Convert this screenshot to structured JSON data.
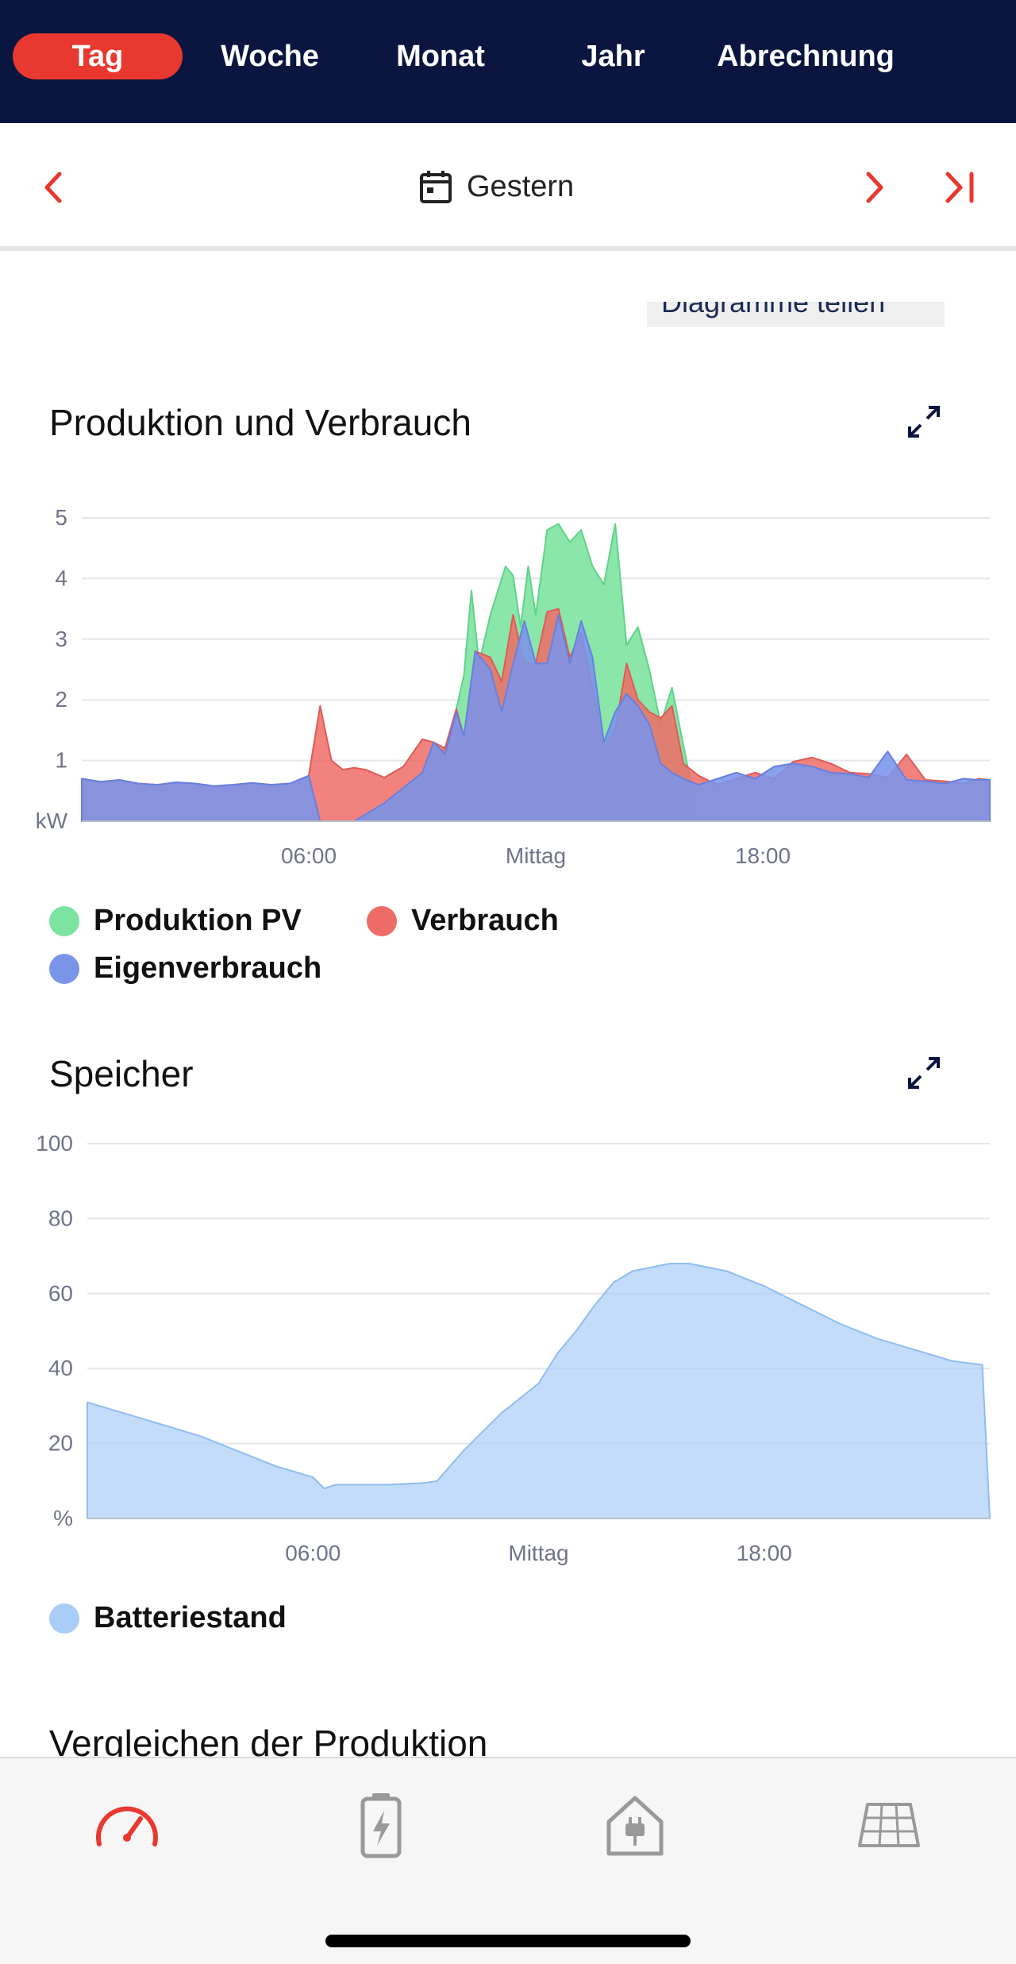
{
  "tabs": [
    {
      "label": "Tag",
      "active": true
    },
    {
      "label": "Woche",
      "active": false
    },
    {
      "label": "Monat",
      "active": false
    },
    {
      "label": "Jahr",
      "active": false
    },
    {
      "label": "Abrechnung",
      "active": false
    }
  ],
  "date_nav": {
    "label": "Gestern"
  },
  "share_button": {
    "label": "Diagramme teilen"
  },
  "sections": {
    "production": {
      "title": "Produktion und Verbrauch"
    },
    "storage": {
      "title": "Speicher"
    },
    "compare": {
      "title": "Vergleichen der Produktion"
    }
  },
  "colors": {
    "accent": "#e8382f",
    "nav_bg": "#0a1640",
    "pv": "#7de3a0",
    "consumption": "#ee6c67",
    "self": "#7a94ea",
    "battery": "#a9cdf7"
  },
  "chart_data": [
    {
      "type": "area",
      "ylabel": "kW",
      "ylim": [
        0,
        5
      ],
      "yticks": [
        1,
        2,
        3,
        4,
        5
      ],
      "x_range_hours": [
        0,
        24
      ],
      "x_tick_labels": [
        {
          "hour": 6,
          "label": "06:00"
        },
        {
          "hour": 12,
          "label": "Mittag"
        },
        {
          "hour": 18,
          "label": "18:00"
        }
      ],
      "grid": true,
      "legend_position": "bottom",
      "series": [
        {
          "name": "Produktion PV",
          "x": [
            0,
            6.4,
            7.2,
            8.1,
            9,
            9.7,
            10.1,
            10.3,
            10.5,
            10.8,
            11.2,
            11.4,
            11.6,
            11.8,
            12,
            12.3,
            12.6,
            12.9,
            13.2,
            13.5,
            13.8,
            14.1,
            14.4,
            14.7,
            15,
            15.3,
            15.6,
            16.3,
            24
          ],
          "values": [
            0,
            0,
            0,
            0.2,
            0.8,
            1.3,
            2.4,
            3.8,
            2.6,
            3.4,
            4.2,
            4.05,
            3.2,
            4.2,
            3.4,
            4.8,
            4.9,
            4.6,
            4.8,
            4.2,
            3.9,
            4.9,
            2.9,
            3.2,
            2.5,
            1.6,
            2.2,
            0,
            0
          ]
        },
        {
          "name": "Verbrauch",
          "x": [
            0,
            0.5,
            1,
            1.5,
            2,
            2.5,
            3,
            3.5,
            4,
            4.5,
            5,
            5.5,
            6,
            6.3,
            6.6,
            6.9,
            7.2,
            7.5,
            8,
            8.5,
            9,
            9.3,
            9.6,
            9.9,
            10.1,
            10.4,
            10.8,
            11.1,
            11.4,
            11.7,
            12,
            12.3,
            12.6,
            12.9,
            13.2,
            13.5,
            13.8,
            14.1,
            14.4,
            14.7,
            15,
            15.3,
            15.6,
            15.9,
            16.3,
            16.8,
            17.3,
            17.8,
            18.3,
            18.8,
            19.3,
            19.8,
            20.3,
            20.8,
            21.3,
            21.8,
            22.3,
            22.8,
            23.3,
            23.7,
            24
          ],
          "values": [
            0.7,
            0.65,
            0.68,
            0.62,
            0.6,
            0.64,
            0.62,
            0.58,
            0.6,
            0.63,
            0.6,
            0.62,
            0.75,
            1.9,
            1,
            0.85,
            0.88,
            0.85,
            0.72,
            0.9,
            1.35,
            1.3,
            1.2,
            1.85,
            1.4,
            2.8,
            2.7,
            2.3,
            3.4,
            2.6,
            2.6,
            3.45,
            3.5,
            2.7,
            3.1,
            2.2,
            1.2,
            1.5,
            2.6,
            2,
            1.8,
            1.7,
            1.9,
            0.95,
            0.75,
            0.6,
            0.7,
            0.8,
            0.7,
            0.98,
            1.05,
            0.95,
            0.8,
            0.78,
            0.72,
            1.1,
            0.68,
            0.66,
            0.62,
            0.7,
            0.68
          ]
        },
        {
          "name": "Eigenverbrauch",
          "x": [
            0,
            0.5,
            1,
            1.5,
            2,
            2.5,
            3,
            3.5,
            4,
            4.5,
            5,
            5.5,
            6,
            6.3,
            7.2,
            8,
            8.5,
            9,
            9.3,
            9.6,
            9.9,
            10.1,
            10.4,
            10.8,
            11.1,
            11.4,
            11.7,
            12,
            12.3,
            12.6,
            12.9,
            13.2,
            13.5,
            13.8,
            14.1,
            14.4,
            14.7,
            15,
            15.3,
            15.6,
            15.9,
            16.3,
            16.8,
            17.3,
            17.8,
            18.3,
            18.8,
            19.3,
            19.8,
            20.3,
            20.8,
            21.3,
            21.8,
            22.3,
            22.8,
            23.3,
            23.7,
            24
          ],
          "values": [
            0.7,
            0.65,
            0.68,
            0.62,
            0.6,
            0.64,
            0.62,
            0.58,
            0.6,
            0.63,
            0.6,
            0.62,
            0.75,
            0,
            0,
            0.3,
            0.55,
            0.8,
            1.3,
            1.1,
            1.8,
            1.4,
            2.8,
            2.5,
            1.8,
            2.6,
            3.3,
            2.6,
            2.6,
            3.4,
            2.6,
            3.3,
            2.7,
            1.3,
            1.8,
            2.1,
            1.9,
            1.6,
            0.95,
            0.8,
            0.7,
            0.6,
            0.7,
            0.8,
            0.7,
            0.9,
            0.95,
            0.9,
            0.8,
            0.78,
            0.72,
            1.15,
            0.68,
            0.66,
            0.62,
            0.7,
            0.68,
            0.68
          ]
        }
      ]
    },
    {
      "type": "area",
      "ylabel": "%",
      "ylim": [
        0,
        100
      ],
      "yticks": [
        20,
        40,
        60,
        80,
        100
      ],
      "x_range_hours": [
        0,
        24
      ],
      "x_tick_labels": [
        {
          "hour": 6,
          "label": "06:00"
        },
        {
          "hour": 12,
          "label": "Mittag"
        },
        {
          "hour": 18,
          "label": "18:00"
        }
      ],
      "grid": true,
      "legend_position": "bottom",
      "series": [
        {
          "name": "Batteriestand",
          "x": [
            0,
            1,
            2,
            3,
            4,
            5,
            6,
            6.3,
            6.6,
            7,
            8,
            9,
            9.3,
            10,
            11,
            12,
            12.5,
            13,
            13.5,
            14,
            14.5,
            15,
            15.5,
            16,
            16.5,
            17,
            17.5,
            18,
            19,
            20,
            21,
            22,
            23,
            23.8,
            24
          ],
          "values": [
            31,
            28,
            25,
            22,
            18,
            14,
            11,
            8,
            9,
            9,
            9,
            9.5,
            10,
            18,
            28,
            36,
            44,
            50,
            57,
            63,
            66,
            67,
            68,
            68,
            67,
            66,
            64,
            62,
            57,
            52,
            48,
            45,
            42,
            41,
            0
          ]
        }
      ]
    }
  ],
  "legend": {
    "production": [
      {
        "label": "Produktion PV"
      },
      {
        "label": "Verbrauch"
      },
      {
        "label": "Eigenverbrauch"
      }
    ],
    "storage": [
      {
        "label": "Batteriestand"
      }
    ]
  },
  "bottom_nav": [
    {
      "icon": "speedometer-icon",
      "active": true
    },
    {
      "icon": "battery-icon",
      "active": false
    },
    {
      "icon": "house-plug-icon",
      "active": false
    },
    {
      "icon": "solar-panel-icon",
      "active": false
    }
  ]
}
